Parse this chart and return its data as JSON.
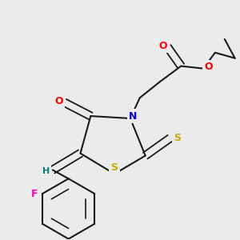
{
  "bg_color": "#ebebeb",
  "bond_color": "#1a1a1a",
  "colors": {
    "O": "#ff0000",
    "N": "#0000cc",
    "S": "#ccaa00",
    "F": "#ff00cc",
    "H": "#008080",
    "C": "#1a1a1a"
  }
}
